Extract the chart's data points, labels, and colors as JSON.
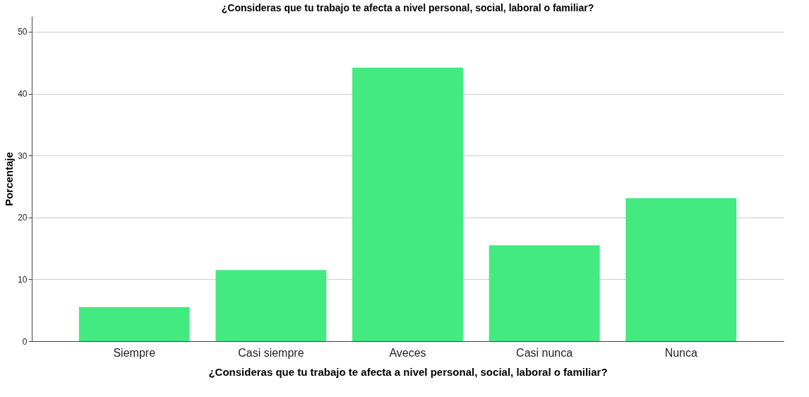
{
  "chart_data": {
    "type": "bar",
    "title": "¿Consideras que tu trabajo te afecta a nivel personal, social, laboral o familiar?",
    "xlabel": "¿Consideras que tu trabajo te afecta a nivel personal, social, laboral o familiar?",
    "ylabel": "Porcentaje",
    "categories": [
      "Siempre",
      "Casi siempre",
      "Aveces",
      "Casi nunca",
      "Nunca"
    ],
    "values": [
      5.5,
      11.5,
      44.2,
      15.5,
      23.1
    ],
    "color": "#43ea7f",
    "ylim": [
      0,
      52.5
    ],
    "yticks": [
      0,
      10,
      20,
      30,
      40,
      50
    ],
    "grid": "y"
  }
}
